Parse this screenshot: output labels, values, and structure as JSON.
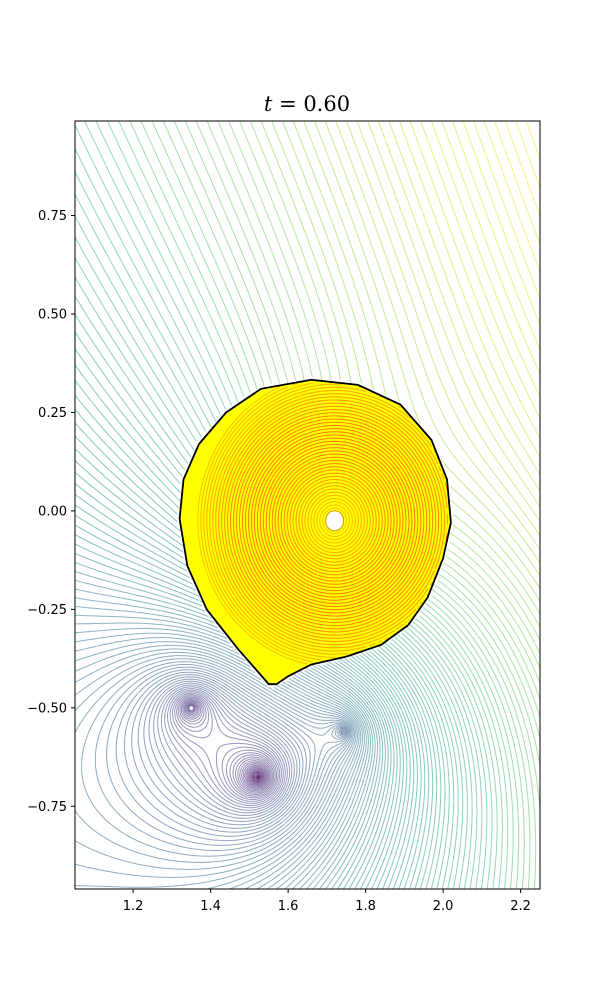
{
  "chart_data": {
    "type": "contour",
    "title": "t = 0.60",
    "title_parts": {
      "var": "t",
      "eq": " = ",
      "val": "0.60"
    },
    "xlabel": "",
    "ylabel": "",
    "xlim": [
      1.05,
      2.25
    ],
    "ylim": [
      -0.96,
      0.99
    ],
    "xticks": [
      1.2,
      1.4,
      1.6,
      1.8,
      2.0,
      2.2
    ],
    "xtick_labels": [
      "1.2",
      "1.4",
      "1.6",
      "1.8",
      "2.0",
      "2.2"
    ],
    "yticks": [
      0.75,
      0.5,
      0.25,
      0.0,
      -0.25,
      -0.5,
      -0.75
    ],
    "ytick_labels": [
      "0.75",
      "0.50",
      "0.25",
      "0.00",
      "−0.25",
      "−0.50",
      "−0.75"
    ],
    "grid": false,
    "colormap_outside": "viridis",
    "colormap_inside": "wistia",
    "boundary_color": "#000000",
    "magnetic_axis": {
      "x": 1.72,
      "y": -0.025
    },
    "plasma_boundary": [
      [
        1.32,
        -0.02
      ],
      [
        1.33,
        0.08
      ],
      [
        1.37,
        0.17
      ],
      [
        1.44,
        0.25
      ],
      [
        1.53,
        0.31
      ],
      [
        1.66,
        0.333
      ],
      [
        1.78,
        0.32
      ],
      [
        1.89,
        0.27
      ],
      [
        1.97,
        0.18
      ],
      [
        2.01,
        0.08
      ],
      [
        2.02,
        -0.03
      ],
      [
        2.0,
        -0.12
      ],
      [
        1.96,
        -0.22
      ],
      [
        1.91,
        -0.29
      ],
      [
        1.84,
        -0.34
      ],
      [
        1.75,
        -0.37
      ],
      [
        1.66,
        -0.39
      ],
      [
        1.6,
        -0.42
      ],
      [
        1.57,
        -0.44
      ],
      [
        1.55,
        -0.44
      ],
      [
        1.47,
        -0.35
      ],
      [
        1.39,
        -0.25
      ],
      [
        1.34,
        -0.14
      ],
      [
        1.32,
        -0.02
      ]
    ],
    "coils": [
      {
        "x": 1.35,
        "y": -0.5
      },
      {
        "x": 1.52,
        "y": -0.675
      },
      {
        "x": 1.74,
        "y": -0.56
      }
    ]
  }
}
